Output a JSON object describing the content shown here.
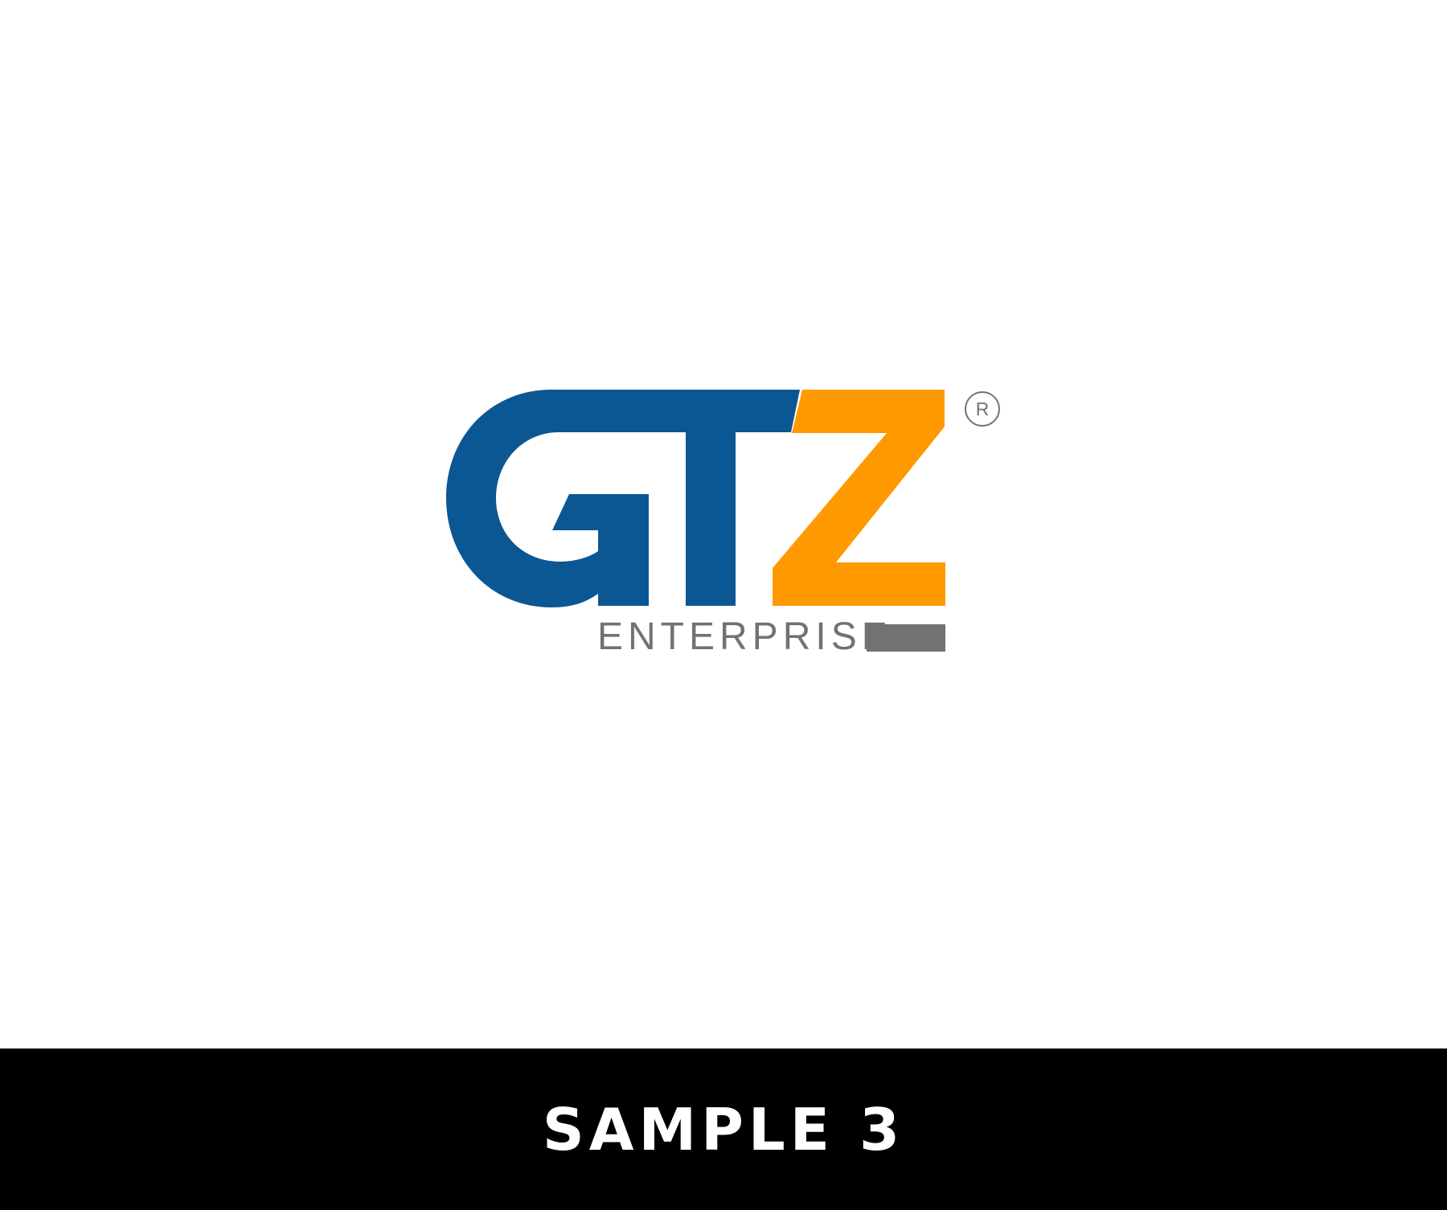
{
  "logo": {
    "brand_name": "GTZ",
    "tagline": "ENTERPRISE",
    "registered_symbol": "R",
    "colors": {
      "blue": "#0B5794",
      "orange": "#FF9900",
      "gray": "#727272"
    }
  },
  "footer": {
    "label": "SAMPLE 3",
    "background_color": "#000000",
    "text_color": "#FFFFFF"
  }
}
